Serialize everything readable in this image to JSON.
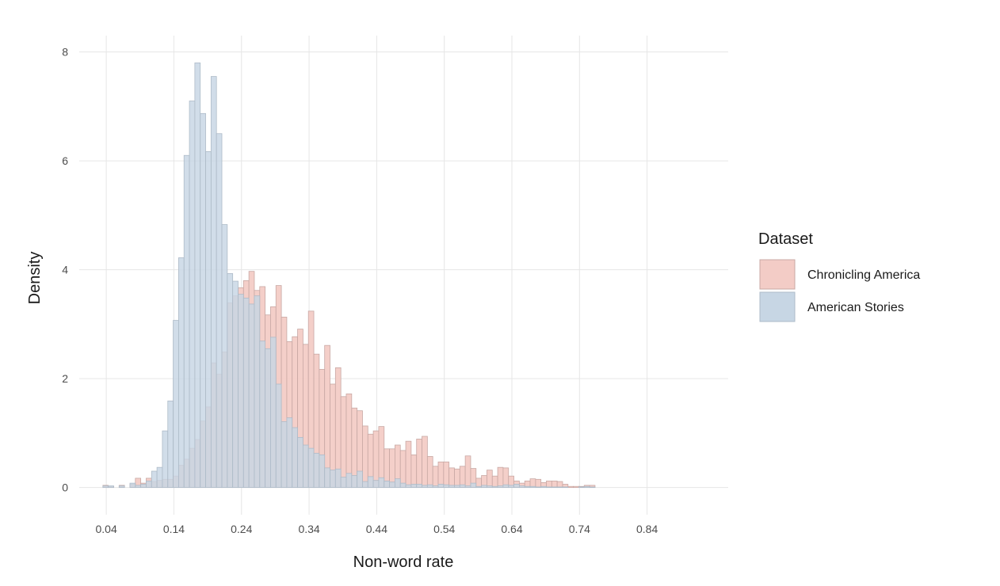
{
  "chart_data": {
    "type": "bar",
    "subtype": "overlapping-histogram",
    "title": "",
    "xlabel": "Non-word rate",
    "ylabel": "Density",
    "xlim": [
      0.0,
      0.96
    ],
    "ylim": [
      -0.5,
      8.3
    ],
    "xticks": [
      0.04,
      0.14,
      0.24,
      0.34,
      0.44,
      0.54,
      0.64,
      0.74,
      0.84
    ],
    "xtick_labels": [
      "0.04",
      "0.14",
      "0.24",
      "0.34",
      "0.44",
      "0.54",
      "0.64",
      "0.74",
      "0.84"
    ],
    "yticks": [
      0,
      2,
      4,
      6,
      8
    ],
    "ytick_labels": [
      "0",
      "2",
      "4",
      "6",
      "8"
    ],
    "grid": true,
    "legend": {
      "title": "Dataset",
      "position": "right",
      "entries": [
        "Chronicling America",
        "American Stories"
      ]
    },
    "bin_start": 0.035,
    "bin_width": 0.008,
    "series": [
      {
        "name": "Chronicling America",
        "color": "#f3ccc6",
        "stroke": "#c8a8a4",
        "values": [
          0.04,
          0.02,
          0,
          0.04,
          0,
          0.06,
          0.17,
          0.08,
          0.17,
          0.11,
          0.13,
          0.15,
          0.15,
          0.21,
          0.41,
          0.52,
          0.72,
          0.88,
          1.22,
          1.48,
          2.29,
          2.08,
          2.49,
          3.39,
          3.52,
          3.67,
          3.8,
          3.97,
          3.62,
          3.69,
          3.17,
          3.32,
          3.71,
          3.13,
          2.68,
          2.77,
          2.91,
          2.63,
          3.24,
          2.45,
          2.17,
          2.61,
          1.9,
          2.2,
          1.67,
          1.72,
          1.46,
          1.41,
          1.13,
          0.98,
          1.04,
          1.12,
          0.71,
          0.71,
          0.78,
          0.68,
          0.85,
          0.6,
          0.89,
          0.94,
          0.57,
          0.39,
          0.47,
          0.47,
          0.36,
          0.34,
          0.39,
          0.58,
          0.35,
          0.17,
          0.22,
          0.32,
          0.21,
          0.37,
          0.36,
          0.21,
          0.12,
          0.08,
          0.12,
          0.16,
          0.15,
          0.09,
          0.12,
          0.12,
          0.11,
          0.06,
          0.02,
          0.02,
          0.02,
          0.04,
          0.04
        ]
      },
      {
        "name": "American Stories",
        "color": "#c7d6e4",
        "stroke": "#aebbc8",
        "values": [
          0.03,
          0.03,
          0,
          0.03,
          0,
          0.08,
          0.04,
          0.06,
          0.12,
          0.3,
          0.37,
          1.04,
          1.59,
          3.07,
          4.22,
          6.1,
          7.1,
          7.8,
          6.87,
          6.17,
          7.55,
          6.5,
          4.83,
          3.93,
          3.79,
          3.55,
          3.48,
          3.37,
          3.52,
          2.69,
          2.55,
          2.76,
          1.9,
          1.21,
          1.28,
          1.1,
          0.92,
          0.78,
          0.72,
          0.63,
          0.6,
          0.36,
          0.32,
          0.34,
          0.19,
          0.26,
          0.22,
          0.3,
          0.11,
          0.2,
          0.13,
          0.18,
          0.12,
          0.1,
          0.16,
          0.08,
          0.05,
          0.06,
          0.06,
          0.04,
          0.05,
          0.03,
          0.06,
          0.05,
          0.04,
          0.04,
          0.05,
          0.03,
          0.08,
          0.02,
          0.04,
          0.03,
          0.02,
          0.03,
          0.05,
          0.04,
          0.06,
          0.03,
          0.02,
          0.02,
          0.01,
          0.02,
          0.01,
          0.01,
          0.01,
          0.01,
          0,
          0,
          0.01,
          0.02,
          0.01
        ]
      }
    ]
  }
}
